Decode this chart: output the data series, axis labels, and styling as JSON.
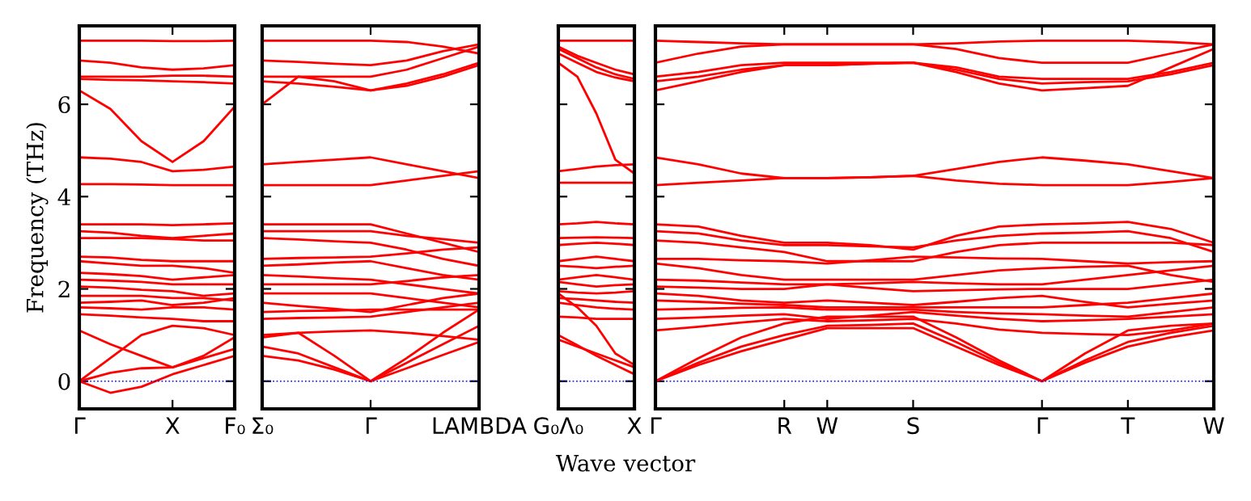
{
  "chart_data": [
    {
      "type": "line",
      "ylabel": "Frequency (THz)",
      "color": "#ff0000",
      "line_style": "solid",
      "marker": "none",
      "grid": false,
      "legend": false,
      "ylim": [
        -0.6,
        7.7
      ],
      "yticks": [
        0,
        2,
        4,
        6
      ],
      "categories": [
        "Γ",
        null,
        null,
        "X",
        null,
        "F₀"
      ],
      "ref_lines": [
        {
          "axis": "y",
          "value": 0,
          "color": "#0000ff",
          "line_style": "dotted"
        }
      ],
      "series": [
        {
          "values": [
            7.38,
            7.38,
            7.38,
            7.37,
            7.37,
            7.38
          ]
        },
        {
          "values": [
            6.95,
            6.9,
            6.8,
            6.75,
            6.78,
            6.85
          ]
        },
        {
          "values": [
            6.6,
            6.6,
            6.6,
            6.62,
            6.62,
            6.6
          ]
        },
        {
          "values": [
            6.55,
            6.53,
            6.52,
            6.5,
            6.48,
            6.45
          ]
        },
        {
          "values": [
            6.3,
            5.9,
            5.2,
            4.75,
            5.2,
            5.95
          ]
        },
        {
          "values": [
            4.85,
            4.82,
            4.75,
            4.55,
            4.58,
            4.65
          ]
        },
        {
          "values": [
            4.27,
            4.27,
            4.26,
            4.25,
            4.25,
            4.25
          ]
        },
        {
          "values": [
            3.4,
            3.4,
            3.4,
            3.38,
            3.4,
            3.42
          ]
        },
        {
          "values": [
            3.25,
            3.22,
            3.15,
            3.1,
            3.15,
            3.2
          ]
        },
        {
          "values": [
            3.1,
            3.1,
            3.1,
            3.08,
            3.05,
            3.05
          ]
        },
        {
          "values": [
            2.7,
            2.68,
            2.63,
            2.6,
            2.6,
            2.6
          ]
        },
        {
          "values": [
            2.6,
            2.55,
            2.5,
            2.5,
            2.45,
            2.35
          ]
        },
        {
          "values": [
            2.35,
            2.32,
            2.28,
            2.2,
            2.25,
            2.3
          ]
        },
        {
          "values": [
            2.2,
            2.18,
            2.15,
            2.1,
            2.1,
            2.1
          ]
        },
        {
          "values": [
            2.05,
            2.03,
            1.98,
            1.95,
            1.85,
            1.9
          ]
        },
        {
          "values": [
            1.85,
            1.85,
            1.85,
            1.8,
            1.8,
            1.75
          ]
        },
        {
          "values": [
            1.7,
            1.72,
            1.75,
            1.65,
            1.7,
            1.8
          ]
        },
        {
          "values": [
            1.6,
            1.58,
            1.55,
            1.6,
            1.6,
            1.55
          ]
        },
        {
          "values": [
            1.45,
            1.42,
            1.38,
            1.35,
            1.3,
            1.3
          ]
        },
        {
          "values": [
            0,
            0.5,
            1.0,
            1.2,
            1.15,
            1.0
          ]
        },
        {
          "values": [
            1.1,
            0.8,
            0.55,
            0.3,
            0.55,
            0.95
          ]
        },
        {
          "values": [
            0,
            0.18,
            0.28,
            0.3,
            0.5,
            0.7
          ]
        },
        {
          "values": [
            0,
            -0.25,
            -0.12,
            0.15,
            0.35,
            0.55
          ]
        }
      ]
    },
    {
      "type": "line",
      "color": "#ff0000",
      "line_style": "solid",
      "marker": "none",
      "grid": false,
      "legend": false,
      "tick_labels": "x",
      "ylim": [
        -0.6,
        7.7
      ],
      "yticks": [
        0,
        2,
        4,
        6
      ],
      "categories": [
        "Σ₀",
        null,
        null,
        "Γ",
        null,
        null,
        "LAMBDA"
      ],
      "ref_lines": [
        {
          "axis": "y",
          "value": 0,
          "color": "#0000ff",
          "line_style": "dotted"
        }
      ],
      "series": [
        {
          "values": [
            7.38,
            7.38,
            7.38,
            7.38,
            7.35,
            7.25,
            7.1
          ]
        },
        {
          "values": [
            6.95,
            6.92,
            6.88,
            6.85,
            6.95,
            7.15,
            7.3
          ]
        },
        {
          "values": [
            6.6,
            6.6,
            6.6,
            6.6,
            6.75,
            7.0,
            7.25
          ]
        },
        {
          "values": [
            6.5,
            6.45,
            6.38,
            6.3,
            6.45,
            6.65,
            6.9
          ]
        },
        {
          "values": [
            6.0,
            6.6,
            6.5,
            6.3,
            6.4,
            6.6,
            6.85
          ]
        },
        {
          "values": [
            4.7,
            4.75,
            4.8,
            4.85,
            4.7,
            4.55,
            4.4
          ]
        },
        {
          "values": [
            4.25,
            4.25,
            4.25,
            4.25,
            4.35,
            4.45,
            4.55
          ]
        },
        {
          "values": [
            3.4,
            3.4,
            3.4,
            3.4,
            3.2,
            3.0,
            2.8
          ]
        },
        {
          "values": [
            3.25,
            3.25,
            3.25,
            3.25,
            3.15,
            3.08,
            3.0
          ]
        },
        {
          "values": [
            3.1,
            3.07,
            3.03,
            3.0,
            2.85,
            2.65,
            2.5
          ]
        },
        {
          "values": [
            2.65,
            2.67,
            2.68,
            2.7,
            2.77,
            2.85,
            2.9
          ]
        },
        {
          "values": [
            2.5,
            2.53,
            2.57,
            2.6,
            2.45,
            2.3,
            2.2
          ]
        },
        {
          "values": [
            2.3,
            2.27,
            2.23,
            2.2,
            2.1,
            2.0,
            1.9
          ]
        },
        {
          "values": [
            2.1,
            2.1,
            2.1,
            2.1,
            2.17,
            2.25,
            2.3
          ]
        },
        {
          "values": [
            1.9,
            1.9,
            1.9,
            1.9,
            1.8,
            1.7,
            1.6
          ]
        },
        {
          "values": [
            1.7,
            1.63,
            1.57,
            1.5,
            1.65,
            1.8,
            1.9
          ]
        },
        {
          "values": [
            1.5,
            1.52,
            1.53,
            1.55,
            1.55,
            1.55,
            1.55
          ]
        },
        {
          "values": [
            1.35,
            1.37,
            1.38,
            1.4,
            1.5,
            1.6,
            1.7
          ]
        },
        {
          "values": [
            1.0,
            1.05,
            1.08,
            1.1,
            1.05,
            0.98,
            0.9
          ]
        },
        {
          "values": [
            0.95,
            1.05,
            0.55,
            0,
            0.5,
            1.05,
            1.55
          ]
        },
        {
          "values": [
            0.75,
            0.6,
            0.3,
            0,
            0.4,
            0.8,
            1.2
          ]
        },
        {
          "values": [
            0.55,
            0.45,
            0.25,
            0,
            0.28,
            0.57,
            0.85
          ]
        }
      ]
    },
    {
      "type": "line",
      "color": "#ff0000",
      "line_style": "solid",
      "marker": "none",
      "grid": false,
      "legend": false,
      "tick_labels": "x",
      "ylim": [
        -0.6,
        7.7
      ],
      "yticks": [
        0,
        2,
        4,
        6
      ],
      "categories": [
        "G₀Λ₀",
        null,
        null,
        null,
        "X"
      ],
      "ref_lines": [
        {
          "axis": "y",
          "value": 0,
          "color": "#0000ff",
          "line_style": "dotted"
        }
      ],
      "series": [
        {
          "values": [
            7.38,
            7.38,
            7.38,
            7.38,
            7.38
          ]
        },
        {
          "values": [
            7.25,
            7.05,
            6.9,
            6.75,
            6.65
          ]
        },
        {
          "values": [
            7.2,
            7.0,
            6.8,
            6.65,
            6.55
          ]
        },
        {
          "values": [
            7.1,
            6.9,
            6.7,
            6.58,
            6.5
          ]
        },
        {
          "values": [
            6.9,
            6.6,
            5.8,
            4.8,
            4.5
          ]
        },
        {
          "values": [
            4.55,
            4.6,
            4.65,
            4.68,
            4.7
          ]
        },
        {
          "values": [
            4.3,
            4.3,
            4.3,
            4.3,
            4.3
          ]
        },
        {
          "values": [
            3.4,
            3.42,
            3.45,
            3.42,
            3.4
          ]
        },
        {
          "values": [
            3.1,
            3.11,
            3.12,
            3.11,
            3.1
          ]
        },
        {
          "values": [
            2.95,
            2.98,
            3.0,
            2.98,
            2.95
          ]
        },
        {
          "values": [
            2.6,
            2.65,
            2.7,
            2.65,
            2.6
          ]
        },
        {
          "values": [
            2.5,
            2.48,
            2.45,
            2.48,
            2.5
          ]
        },
        {
          "values": [
            2.2,
            2.25,
            2.3,
            2.25,
            2.2
          ]
        },
        {
          "values": [
            2.15,
            2.1,
            2.05,
            2.08,
            2.1
          ]
        },
        {
          "values": [
            1.95,
            1.92,
            1.9,
            1.92,
            1.95
          ]
        },
        {
          "values": [
            1.8,
            1.78,
            1.75,
            1.72,
            1.7
          ]
        },
        {
          "values": [
            1.7,
            1.65,
            1.6,
            1.57,
            1.55
          ]
        },
        {
          "values": [
            1.4,
            1.38,
            1.35,
            1.35,
            1.35
          ]
        },
        {
          "values": [
            1.9,
            1.6,
            1.2,
            0.6,
            0.35
          ]
        },
        {
          "values": [
            0.9,
            0.75,
            0.6,
            0.45,
            0.3
          ]
        },
        {
          "values": [
            1.0,
            0.78,
            0.55,
            0.35,
            0.15
          ]
        }
      ]
    },
    {
      "type": "line",
      "xlabel": "Wave vector",
      "color": "#ff0000",
      "line_style": "solid",
      "marker": "none",
      "grid": false,
      "legend": false,
      "tick_labels": "x",
      "ylim": [
        -0.6,
        7.7
      ],
      "yticks": [
        0,
        2,
        4,
        6
      ],
      "categories": [
        "Γ",
        null,
        null,
        "R",
        "W",
        null,
        "S",
        null,
        null,
        "Γ",
        null,
        "T",
        null,
        "W"
      ],
      "ref_lines": [
        {
          "axis": "y",
          "value": 0,
          "color": "#0000ff",
          "line_style": "dotted"
        }
      ],
      "series": [
        {
          "values": [
            7.38,
            7.35,
            7.32,
            7.3,
            7.3,
            7.3,
            7.3,
            7.32,
            7.36,
            7.38,
            7.38,
            7.38,
            7.35,
            7.3
          ]
        },
        {
          "values": [
            6.9,
            7.1,
            7.25,
            7.3,
            7.3,
            7.3,
            7.3,
            7.2,
            7.0,
            6.9,
            6.9,
            6.9,
            7.1,
            7.3
          ]
        },
        {
          "values": [
            6.6,
            6.7,
            6.85,
            6.9,
            6.9,
            6.9,
            6.9,
            6.8,
            6.6,
            6.55,
            6.55,
            6.55,
            6.7,
            6.9
          ]
        },
        {
          "values": [
            6.5,
            6.6,
            6.75,
            6.85,
            6.85,
            6.88,
            6.9,
            6.75,
            6.55,
            6.45,
            6.48,
            6.5,
            6.65,
            6.85
          ]
        },
        {
          "values": [
            6.3,
            6.5,
            6.7,
            6.85,
            6.85,
            6.88,
            6.9,
            6.7,
            6.45,
            6.3,
            6.35,
            6.4,
            6.8,
            7.2
          ]
        },
        {
          "values": [
            4.85,
            4.7,
            4.5,
            4.4,
            4.4,
            4.42,
            4.45,
            4.6,
            4.75,
            4.85,
            4.78,
            4.7,
            4.55,
            4.4
          ]
        },
        {
          "values": [
            4.25,
            4.3,
            4.35,
            4.4,
            4.4,
            4.42,
            4.45,
            4.35,
            4.28,
            4.25,
            4.25,
            4.25,
            4.32,
            4.4
          ]
        },
        {
          "values": [
            3.4,
            3.35,
            3.15,
            3.0,
            3.0,
            2.95,
            2.85,
            3.15,
            3.35,
            3.4,
            3.42,
            3.45,
            3.3,
            3.0
          ]
        },
        {
          "values": [
            3.25,
            3.2,
            3.05,
            2.95,
            2.95,
            2.92,
            2.9,
            3.05,
            3.15,
            3.2,
            3.22,
            3.25,
            3.1,
            2.8
          ]
        },
        {
          "values": [
            3.05,
            3.0,
            2.9,
            2.8,
            2.6,
            2.6,
            2.6,
            2.8,
            2.95,
            3.0,
            3.0,
            3.0,
            3.0,
            2.95
          ]
        },
        {
          "values": [
            2.65,
            2.65,
            2.62,
            2.6,
            2.55,
            2.62,
            2.7,
            2.68,
            2.66,
            2.65,
            2.6,
            2.55,
            2.58,
            2.6
          ]
        },
        {
          "values": [
            2.55,
            2.45,
            2.3,
            2.2,
            2.2,
            2.2,
            2.2,
            2.3,
            2.4,
            2.45,
            2.48,
            2.5,
            2.3,
            2.15
          ]
        },
        {
          "values": [
            2.2,
            2.18,
            2.14,
            2.1,
            2.1,
            2.12,
            2.15,
            2.12,
            2.1,
            2.1,
            2.2,
            2.3,
            2.4,
            2.5
          ]
        },
        {
          "values": [
            2.05,
            2.03,
            2.0,
            2.0,
            2.1,
            2.02,
            1.95,
            1.97,
            1.99,
            2.0,
            2.0,
            2.0,
            2.1,
            2.2
          ]
        },
        {
          "values": [
            1.9,
            1.85,
            1.75,
            1.7,
            1.75,
            1.7,
            1.65,
            1.72,
            1.8,
            1.85,
            1.72,
            1.6,
            1.68,
            1.75
          ]
        },
        {
          "values": [
            1.75,
            1.72,
            1.68,
            1.65,
            1.6,
            1.6,
            1.6,
            1.6,
            1.6,
            1.6,
            1.65,
            1.7,
            1.8,
            1.9
          ]
        },
        {
          "values": [
            1.55,
            1.57,
            1.59,
            1.6,
            1.55,
            1.55,
            1.55,
            1.5,
            1.47,
            1.45,
            1.42,
            1.4,
            1.5,
            1.6
          ]
        },
        {
          "values": [
            1.35,
            1.38,
            1.42,
            1.45,
            1.35,
            1.42,
            1.5,
            1.42,
            1.35,
            1.3,
            1.32,
            1.35,
            1.4,
            1.45
          ]
        },
        {
          "values": [
            1.1,
            1.18,
            1.27,
            1.35,
            1.3,
            1.32,
            1.35,
            1.25,
            1.12,
            1.05,
            1.02,
            1.0,
            1.1,
            1.25
          ]
        },
        {
          "values": [
            0,
            0.4,
            0.75,
            1.0,
            1.2,
            1.22,
            1.25,
            0.85,
            0.4,
            0,
            0.45,
            0.85,
            1.05,
            1.2
          ]
        },
        {
          "values": [
            0,
            0.35,
            0.65,
            0.9,
            1.15,
            1.15,
            1.15,
            0.75,
            0.35,
            0,
            0.4,
            0.75,
            0.95,
            1.1
          ]
        },
        {
          "values": [
            0,
            0.5,
            0.95,
            1.25,
            1.4,
            1.4,
            1.4,
            0.95,
            0.45,
            0,
            0.6,
            1.1,
            1.2,
            1.25
          ]
        }
      ]
    }
  ]
}
